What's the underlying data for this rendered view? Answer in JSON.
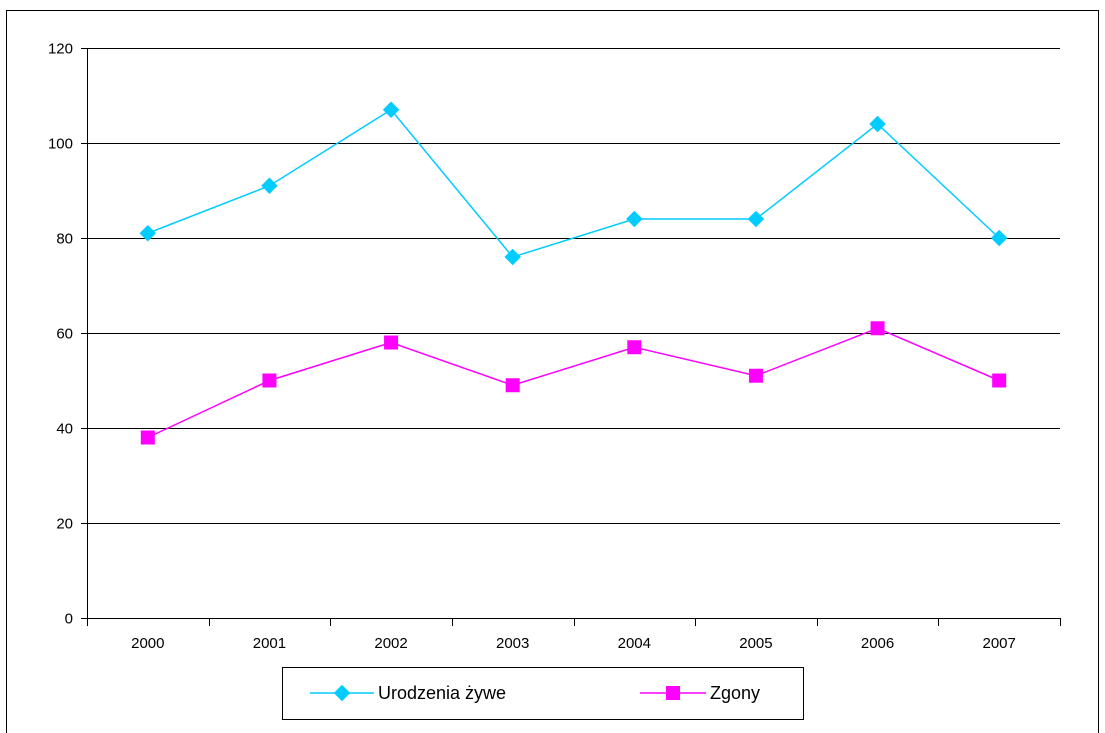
{
  "chart_data": {
    "type": "line",
    "categories": [
      "2000",
      "2001",
      "2002",
      "2003",
      "2004",
      "2005",
      "2006",
      "2007"
    ],
    "series": [
      {
        "name": "Urodzenia żywe",
        "values": [
          81,
          91,
          107,
          76,
          84,
          84,
          104,
          80
        ],
        "color": "#00ccff",
        "marker": "diamond"
      },
      {
        "name": "Zgony",
        "values": [
          38,
          50,
          58,
          49,
          57,
          51,
          61,
          50
        ],
        "color": "#ff00ff",
        "marker": "square"
      }
    ],
    "ylim": [
      0,
      120
    ],
    "y_ticks": [
      "0",
      "20",
      "40",
      "60",
      "80",
      "100",
      "120"
    ],
    "grid": true,
    "legend_position": "bottom"
  }
}
